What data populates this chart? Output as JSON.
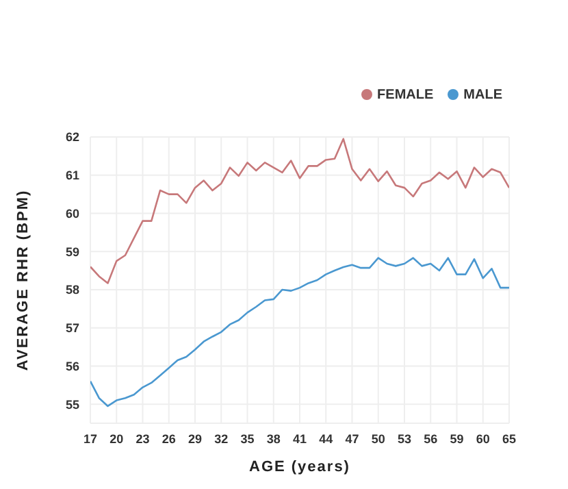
{
  "chart_data": {
    "type": "line",
    "xlabel": "AGE (years)",
    "ylabel": "AVERAGE RHR (BPM)",
    "categories": [
      "17",
      null,
      null,
      "20",
      null,
      null,
      "23",
      null,
      null,
      "26",
      null,
      null,
      "29",
      null,
      null,
      "32",
      null,
      null,
      "35",
      null,
      null,
      "38",
      null,
      null,
      "41",
      null,
      null,
      "44",
      null,
      null,
      "47",
      null,
      null,
      "50",
      null,
      null,
      "53",
      null,
      null,
      "56",
      null,
      null,
      "59",
      null,
      null,
      "60",
      null,
      null,
      "65"
    ],
    "series": [
      {
        "name": "FEMALE",
        "color": "#c7787a",
        "values": [
          58.6,
          58.35,
          58.17,
          58.75,
          58.9,
          59.35,
          59.8,
          59.8,
          60.6,
          60.5,
          60.5,
          60.27,
          60.67,
          60.86,
          60.6,
          60.78,
          61.2,
          60.98,
          61.33,
          61.12,
          61.33,
          61.2,
          61.07,
          61.38,
          60.92,
          61.24,
          61.24,
          61.4,
          61.43,
          61.95,
          61.16,
          60.86,
          61.16,
          60.84,
          61.1,
          60.73,
          60.67,
          60.44,
          60.78,
          60.86,
          61.07,
          60.9,
          61.1,
          60.67,
          61.2,
          60.95,
          61.16,
          61.07,
          60.67
        ]
      },
      {
        "name": "MALE",
        "color": "#4a98d0",
        "values": [
          55.6,
          55.16,
          54.95,
          55.1,
          55.16,
          55.25,
          55.44,
          55.56,
          55.75,
          55.95,
          56.15,
          56.24,
          56.43,
          56.64,
          56.77,
          56.89,
          57.09,
          57.2,
          57.4,
          57.55,
          57.72,
          57.75,
          58.0,
          57.97,
          58.05,
          58.17,
          58.25,
          58.4,
          58.5,
          58.59,
          58.65,
          58.57,
          58.57,
          58.83,
          58.68,
          58.62,
          58.68,
          58.83,
          58.62,
          58.68,
          58.5,
          58.83,
          58.4,
          58.4,
          58.8,
          58.3,
          58.55,
          58.05,
          58.05
        ]
      }
    ],
    "ylim": [
      54.5,
      62
    ],
    "yticks": [
      55,
      56,
      57,
      58,
      59,
      60,
      61,
      62
    ],
    "grid": true,
    "legend": "top right",
    "marker": "none",
    "line_style": "solid"
  }
}
